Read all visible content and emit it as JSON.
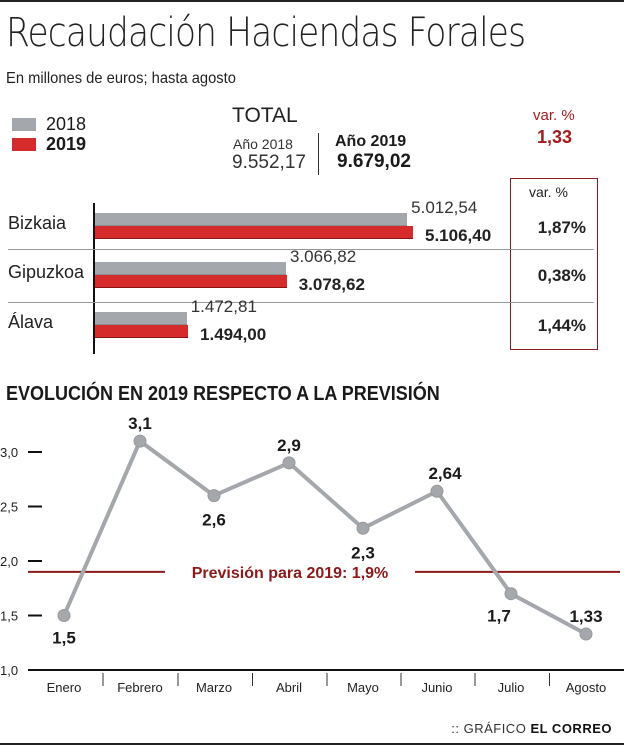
{
  "title": "Recaudación Haciendas Forales",
  "subtitle": "En millones de euros; hasta agosto",
  "legend": [
    {
      "label": "2018",
      "color": "#a4a7ab"
    },
    {
      "label": "2019",
      "color": "#d62b2b"
    }
  ],
  "total": {
    "label": "TOTAL",
    "year2018_label": "Año 2018",
    "year2018_value": "9.552,17",
    "year2019_label": "Año 2019",
    "year2019_value": "9.679,02",
    "var_label": "var. %",
    "var_value": "1,33"
  },
  "regions_var_label": "var. %",
  "regions": [
    {
      "name": "Bizkaia",
      "v2018": 5012.54,
      "v2018_label": "5.012,54",
      "v2019": 5106.4,
      "v2019_label": "5.106,40",
      "var": "1,87%"
    },
    {
      "name": "Gipuzkoa",
      "v2018": 3066.82,
      "v2018_label": "3.066,82",
      "v2019": 3078.62,
      "v2019_label": "3.078,62",
      "var": "0,38%"
    },
    {
      "name": "Álava",
      "v2018": 1472.81,
      "v2018_label": "1.472,81",
      "v2019": 1494.0,
      "v2019_label": "1.494,00",
      "var": "1,44%"
    }
  ],
  "colors": {
    "y2018": "#a4a7ab",
    "y2019": "#d62b2b",
    "accent": "#8b1a1a",
    "line": "#a4a7ab"
  },
  "chart_data": [
    {
      "type": "bar",
      "orientation": "horizontal",
      "title": "Recaudación Haciendas Forales",
      "subtitle": "En millones de euros; hasta agosto",
      "categories": [
        "Bizkaia",
        "Gipuzkoa",
        "Álava"
      ],
      "series": [
        {
          "name": "2018",
          "values": [
            5012.54,
            3066.82,
            1472.81
          ]
        },
        {
          "name": "2019",
          "values": [
            5106.4,
            3078.62,
            1494.0
          ]
        }
      ],
      "var_pct": [
        1.87,
        0.38,
        1.44
      ],
      "legend": "top-left"
    },
    {
      "type": "line",
      "title": "EVOLUCIÓN EN 2019 RESPECTO A LA PREVISIÓN",
      "categories": [
        "Enero",
        "Febrero",
        "Marzo",
        "Abril",
        "Mayo",
        "Junio",
        "Julio",
        "Agosto"
      ],
      "values": [
        1.5,
        3.1,
        2.6,
        2.9,
        2.3,
        2.64,
        1.7,
        1.33
      ],
      "labels": [
        "1,5",
        "3,1",
        "2,6",
        "2,9",
        "2,3",
        "2,64",
        "1,7",
        "1,33"
      ],
      "yticks": [
        "1,0",
        "1,5",
        "2,0",
        "2,5",
        "3,0"
      ],
      "ytick_values": [
        1.0,
        1.5,
        2.0,
        2.5,
        3.0
      ],
      "ylim": [
        1.0,
        3.2
      ],
      "reference_line": {
        "value": 1.9,
        "label": "Previsión para 2019: 1,9%"
      },
      "grid": false
    }
  ],
  "credit": {
    "prefix": ":: GRÁFICO",
    "brand": "EL CORREO"
  }
}
